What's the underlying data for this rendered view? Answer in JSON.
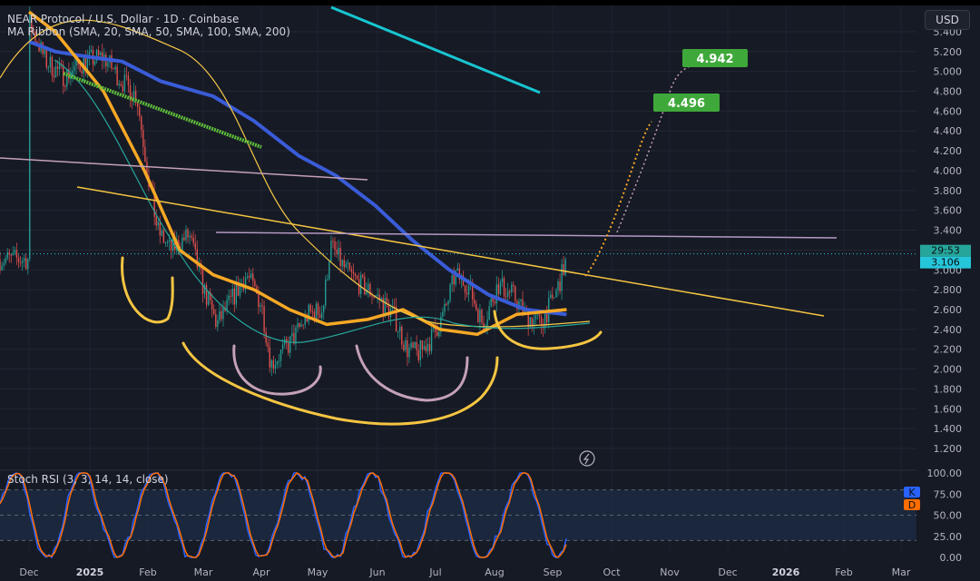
{
  "header": {
    "title": "NEAR Protocol / U.S. Dollar · 1D · Coinbase",
    "ma_ribbon": "MA Ribbon (SMA, 20, SMA, 50, SMA, 100, SMA, 200)",
    "currency_button": "USD"
  },
  "price_badges": {
    "countdown": "29:53",
    "last_price": "3.106"
  },
  "targets": [
    "4.942",
    "4.496"
  ],
  "indicator": {
    "label": "Stoch RSI (3, 3, 14, 14, close)",
    "k_badge": "K",
    "d_badge": "D",
    "k_color": "#2962ff",
    "d_color": "#ff6d00"
  },
  "colors": {
    "background": "#161a25",
    "up_candle": "#26a69a",
    "down_candle": "#ef5350",
    "sma20": "#f7c948",
    "sma50": "#f7a825",
    "sma100": "#3a5cd8",
    "pattern_yellow": "#f5c542",
    "pattern_pink": "#c4a1b6",
    "trend_cyan": "#17c5d0",
    "trend_green": "#5fbf3a",
    "target_green": "#3fa83a"
  },
  "chart_data": {
    "type": "line",
    "title": "NEAR Protocol / U.S. Dollar · 1D · Coinbase",
    "x_ticks": [
      "Dec",
      "2025",
      "Feb",
      "Mar",
      "Apr",
      "May",
      "Jun",
      "Jul",
      "Aug",
      "Sep",
      "Oct",
      "Nov",
      "Dec",
      "2026",
      "Feb",
      "Mar"
    ],
    "y_ticks": [
      "1.200",
      "1.400",
      "1.600",
      "1.800",
      "2.000",
      "2.200",
      "2.400",
      "2.600",
      "2.800",
      "3.000",
      "3.200",
      "3.400",
      "3.600",
      "3.800",
      "4.000",
      "4.200",
      "4.400",
      "4.600",
      "4.800",
      "5.000",
      "5.200",
      "5.400"
    ],
    "ylim": [
      1.1,
      5.5
    ],
    "price_series_name": "Close",
    "price_path": [
      [
        "2024-12-01",
        5.5
      ],
      [
        "2024-12-10",
        5.1
      ],
      [
        "2024-12-20",
        4.95
      ],
      [
        "2024-12-31",
        5.1
      ],
      [
        "2025-01-10",
        5.15
      ],
      [
        "2025-01-20",
        4.9
      ],
      [
        "2025-01-28",
        4.75
      ],
      [
        "2025-02-03",
        3.95
      ],
      [
        "2025-02-08",
        3.4
      ],
      [
        "2025-02-15",
        3.2
      ],
      [
        "2025-02-25",
        3.35
      ],
      [
        "2025-03-05",
        2.8
      ],
      [
        "2025-03-12",
        2.45
      ],
      [
        "2025-03-20",
        2.7
      ],
      [
        "2025-03-28",
        2.95
      ],
      [
        "2025-04-05",
        2.65
      ],
      [
        "2025-04-10",
        2.05
      ],
      [
        "2025-04-20",
        2.25
      ],
      [
        "2025-04-30",
        2.55
      ],
      [
        "2025-05-08",
        2.6
      ],
      [
        "2025-05-12",
        3.25
      ],
      [
        "2025-05-20",
        3.0
      ],
      [
        "2025-05-28",
        2.85
      ],
      [
        "2025-06-05",
        2.75
      ],
      [
        "2025-06-15",
        2.55
      ],
      [
        "2025-06-22",
        2.2
      ],
      [
        "2025-06-28",
        2.15
      ],
      [
        "2025-07-05",
        2.3
      ],
      [
        "2025-07-12",
        2.55
      ],
      [
        "2025-07-18",
        2.95
      ],
      [
        "2025-07-25",
        2.85
      ],
      [
        "2025-08-02",
        2.45
      ],
      [
        "2025-08-10",
        2.85
      ],
      [
        "2025-08-18",
        2.75
      ],
      [
        "2025-08-25",
        2.55
      ],
      [
        "2025-09-02",
        2.45
      ],
      [
        "2025-09-10",
        2.75
      ],
      [
        "2025-09-16",
        3.106
      ]
    ],
    "series": [
      {
        "name": "SMA 50",
        "values": [
          [
            "2024-12-01",
            5.6
          ],
          [
            "2024-12-15",
            5.4
          ],
          [
            "2025-01-10",
            4.8
          ],
          [
            "2025-02-01",
            4.0
          ],
          [
            "2025-02-20",
            3.2
          ],
          [
            "2025-03-10",
            2.95
          ],
          [
            "2025-04-01",
            2.8
          ],
          [
            "2025-04-20",
            2.6
          ],
          [
            "2025-05-10",
            2.45
          ],
          [
            "2025-06-01",
            2.5
          ],
          [
            "2025-06-20",
            2.6
          ],
          [
            "2025-07-10",
            2.4
          ],
          [
            "2025-07-30",
            2.35
          ],
          [
            "2025-08-20",
            2.55
          ],
          [
            "2025-09-16",
            2.6
          ]
        ]
      },
      {
        "name": "SMA 100",
        "values": [
          [
            "2024-12-01",
            5.3
          ],
          [
            "2024-12-15",
            5.2
          ],
          [
            "2025-01-01",
            5.15
          ],
          [
            "2025-01-20",
            5.1
          ],
          [
            "2025-02-10",
            4.9
          ],
          [
            "2025-03-10",
            4.75
          ],
          [
            "2025-04-01",
            4.5
          ],
          [
            "2025-04-25",
            4.15
          ],
          [
            "2025-05-15",
            3.95
          ],
          [
            "2025-06-05",
            3.65
          ],
          [
            "2025-06-25",
            3.3
          ],
          [
            "2025-07-15",
            3.0
          ],
          [
            "2025-08-05",
            2.75
          ],
          [
            "2025-08-25",
            2.6
          ],
          [
            "2025-09-16",
            2.55
          ]
        ]
      }
    ],
    "targets": [
      4.942,
      4.496
    ],
    "last_price": 3.106,
    "stoch_rsi": {
      "ylim": [
        0,
        100
      ],
      "y_ticks": [
        "0.00",
        "25.00",
        "50.00",
        "75.00",
        "100.00"
      ],
      "band": [
        20,
        80
      ]
    }
  }
}
